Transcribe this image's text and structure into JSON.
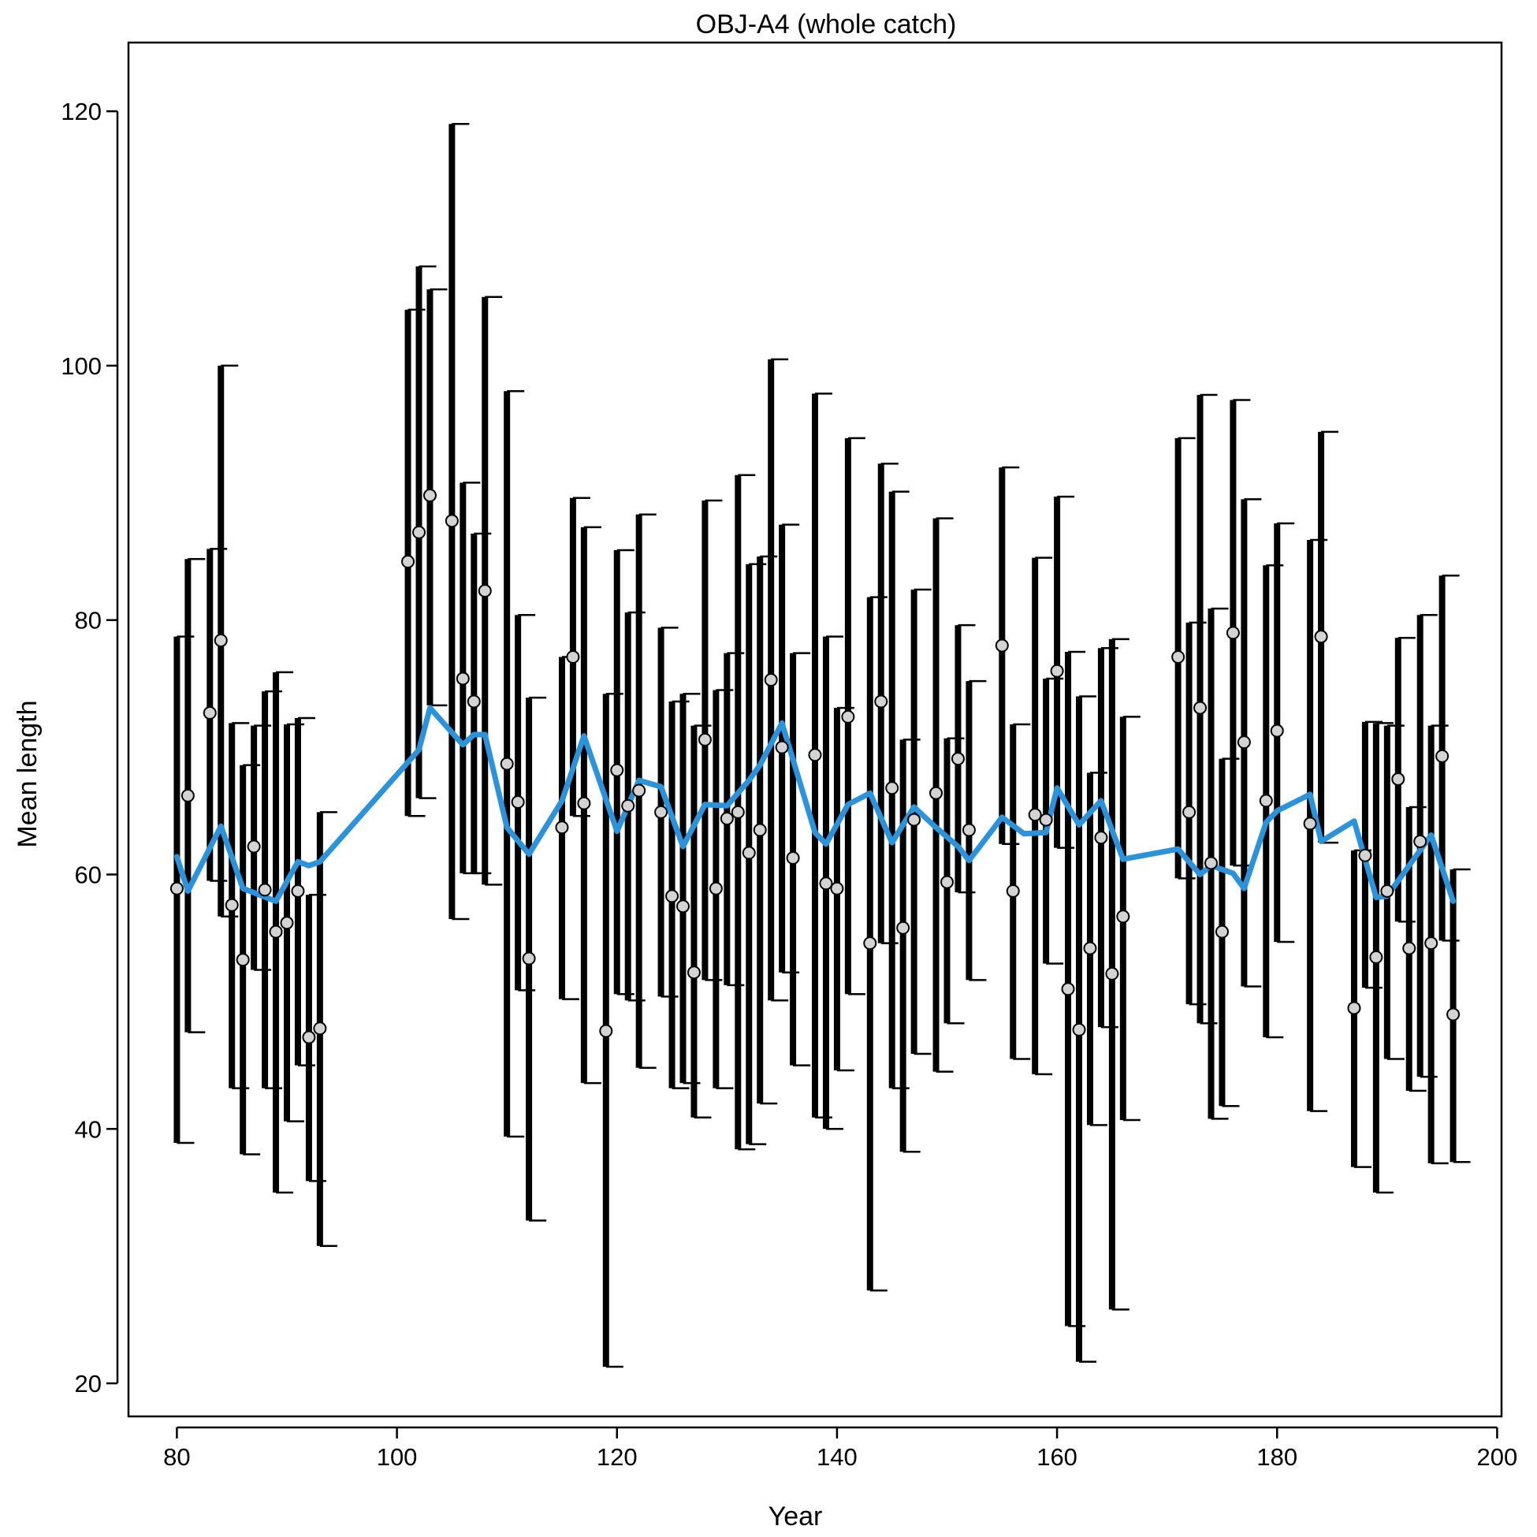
{
  "chart_data": {
    "type": "line",
    "title": "OBJ-A4 (whole catch)",
    "xlabel": "Year",
    "ylabel": "Mean length",
    "xlim": [
      75.6,
      200.4
    ],
    "ylim": [
      17.4,
      125.4
    ],
    "x_ticks": [
      80,
      100,
      120,
      140,
      160,
      180,
      200
    ],
    "y_ticks": [
      20,
      40,
      60,
      80,
      100,
      120
    ],
    "grid": false,
    "colors": {
      "observed_point_fill": "#d3d3d3",
      "observed_point_stroke": "#000000",
      "error_bar": "#000000",
      "expected_line": "#2a93dc"
    },
    "series": [
      {
        "kind": "observed",
        "x": [
          80,
          81,
          83,
          84,
          85,
          86,
          87,
          88,
          89,
          90,
          91,
          92,
          93,
          101,
          102,
          103,
          105,
          106,
          107,
          108,
          110,
          111,
          112,
          115,
          116,
          117,
          119,
          120,
          121,
          122,
          124,
          125,
          126,
          127,
          128,
          129,
          130,
          131,
          132,
          133,
          134,
          135,
          136,
          138,
          139,
          140,
          141,
          143,
          144,
          145,
          146,
          147,
          149,
          150,
          151,
          152,
          155,
          156,
          158,
          159,
          160,
          161,
          162,
          163,
          164,
          165,
          166,
          171,
          172,
          173,
          174,
          175,
          176,
          177,
          179,
          180,
          183,
          184,
          187,
          188,
          189,
          190,
          191,
          192,
          193,
          194,
          195,
          196
        ],
        "y": [
          58.9,
          66.2,
          72.7,
          78.4,
          57.6,
          53.3,
          62.2,
          58.8,
          55.5,
          56.2,
          58.7,
          47.2,
          47.9,
          84.6,
          86.9,
          89.8,
          87.8,
          75.4,
          73.6,
          82.3,
          68.7,
          65.7,
          53.4,
          63.7,
          77.1,
          65.6,
          47.7,
          68.2,
          65.4,
          66.6,
          64.9,
          58.3,
          57.5,
          52.3,
          70.6,
          58.9,
          64.4,
          64.9,
          61.7,
          63.5,
          75.3,
          70.0,
          61.3,
          69.4,
          59.3,
          58.9,
          72.4,
          54.6,
          73.6,
          66.8,
          55.8,
          64.3,
          66.4,
          59.4,
          69.1,
          63.5,
          78.0,
          58.7,
          64.7,
          64.3,
          76.0,
          51.0,
          47.8,
          54.2,
          62.9,
          52.2,
          56.7,
          77.1,
          64.9,
          73.1,
          60.9,
          55.5,
          79.0,
          70.4,
          65.8,
          71.3,
          64.0,
          78.7,
          49.5,
          61.5,
          53.5,
          58.7,
          67.5,
          54.2,
          62.6,
          54.6,
          69.3,
          49.0
        ],
        "lower": [
          38.9,
          47.6,
          59.5,
          56.7,
          43.2,
          38.0,
          52.5,
          43.2,
          35.0,
          40.6,
          45.0,
          35.9,
          30.8,
          64.6,
          66.0,
          73.3,
          56.5,
          60.1,
          60.1,
          59.2,
          39.4,
          50.9,
          32.8,
          50.2,
          64.6,
          43.6,
          21.3,
          50.6,
          50.1,
          44.8,
          50.4,
          43.2,
          43.6,
          40.9,
          51.7,
          43.2,
          51.3,
          38.4,
          38.8,
          42.0,
          50.1,
          52.3,
          45.0,
          40.9,
          40.0,
          44.6,
          50.6,
          27.3,
          54.6,
          43.2,
          38.2,
          45.9,
          44.5,
          48.3,
          58.6,
          51.7,
          62.4,
          45.5,
          44.3,
          53.0,
          62.1,
          24.5,
          21.7,
          40.3,
          48.0,
          25.8,
          40.7,
          59.7,
          49.8,
          48.3,
          40.8,
          41.8,
          60.7,
          51.2,
          47.2,
          54.7,
          41.4,
          62.5,
          37.0,
          51.1,
          35.0,
          45.5,
          56.3,
          43.0,
          44.1,
          37.3,
          54.8,
          37.4
        ],
        "upper": [
          78.7,
          84.8,
          85.6,
          100.0,
          71.9,
          68.6,
          71.7,
          74.4,
          75.9,
          71.8,
          72.3,
          58.4,
          64.9,
          104.4,
          107.8,
          106.0,
          119.0,
          90.8,
          86.8,
          105.4,
          98.0,
          80.4,
          73.9,
          77.1,
          89.6,
          87.3,
          74.2,
          85.5,
          80.6,
          88.3,
          79.4,
          73.6,
          74.2,
          71.7,
          89.4,
          74.5,
          77.4,
          91.4,
          84.4,
          85.0,
          100.5,
          87.5,
          77.4,
          97.8,
          78.7,
          73.1,
          94.3,
          81.8,
          92.3,
          90.1,
          70.6,
          82.4,
          88.0,
          70.7,
          79.6,
          75.2,
          92.0,
          71.8,
          84.9,
          75.4,
          89.7,
          77.5,
          74.0,
          68.0,
          77.8,
          78.5,
          72.4,
          94.3,
          79.8,
          97.7,
          80.9,
          69.1,
          97.3,
          89.5,
          84.3,
          87.6,
          86.3,
          94.8,
          61.9,
          72.0,
          71.9,
          71.7,
          78.6,
          65.3,
          80.4,
          71.7,
          83.5,
          60.4
        ]
      },
      {
        "kind": "expected",
        "x": [
          80,
          81,
          84,
          86,
          89,
          91,
          92,
          93,
          102,
          103,
          106,
          107,
          108,
          110,
          112,
          115,
          117,
          120,
          122,
          124,
          126,
          128,
          130,
          132,
          133,
          135,
          138,
          139,
          141,
          143,
          145,
          147,
          149,
          151,
          152,
          155,
          157,
          159,
          160,
          162,
          164,
          166,
          171,
          173,
          174,
          176,
          177,
          179,
          180,
          183,
          184,
          187,
          189,
          190,
          194,
          196
        ],
        "y": [
          61.4,
          58.7,
          63.8,
          58.9,
          57.9,
          61.0,
          60.7,
          61.0,
          69.8,
          73.1,
          70.2,
          71.0,
          71.0,
          63.7,
          61.6,
          65.8,
          70.9,
          63.4,
          67.4,
          66.9,
          62.2,
          65.5,
          65.4,
          67.4,
          68.6,
          71.9,
          63.3,
          62.4,
          65.5,
          66.4,
          62.5,
          65.3,
          63.7,
          62.2,
          61.1,
          64.5,
          63.2,
          63.3,
          66.8,
          63.9,
          65.8,
          61.2,
          62.0,
          60.0,
          60.7,
          60.1,
          58.9,
          64.1,
          65.0,
          66.3,
          62.6,
          64.2,
          58.2,
          58.3,
          63.1,
          57.9
        ]
      }
    ]
  }
}
